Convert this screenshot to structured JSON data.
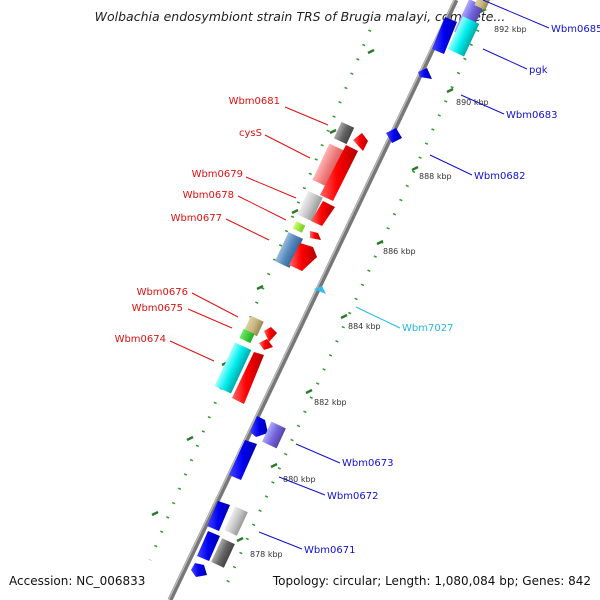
{
  "title": "Wolbachia endosymbiont strain TRS of Brugia malayi, complete...",
  "accession": "Accession: NC_006833",
  "topology": "Topology: circular; Length: 1,080,084 bp; Genes: 842",
  "colors": {
    "backbone": "#888888",
    "tick": "#2f9a2f",
    "reverse_label": "#dd1111",
    "forward_label": "#1111cc",
    "highlight_label": "#22bbdd",
    "scale_label": "#333333"
  },
  "scale_labels": [
    "878 kbp",
    "880 kbp",
    "882 kbp",
    "884 kbp",
    "886 kbp",
    "888 kbp",
    "890 kbp",
    "892 kbp"
  ],
  "genes": [
    {
      "name": "Wbm0685",
      "strand": "forward",
      "label_color": "forward"
    },
    {
      "name": "pgk",
      "strand": "forward",
      "label_color": "forward"
    },
    {
      "name": "Wbm0683",
      "strand": "forward",
      "label_color": "forward"
    },
    {
      "name": "Wbm0682",
      "strand": "forward",
      "label_color": "forward"
    },
    {
      "name": "Wbm7027",
      "strand": "forward",
      "label_color": "highlight"
    },
    {
      "name": "Wbm0673",
      "strand": "forward",
      "label_color": "forward"
    },
    {
      "name": "Wbm0672",
      "strand": "forward",
      "label_color": "forward"
    },
    {
      "name": "Wbm0671",
      "strand": "forward",
      "label_color": "forward"
    },
    {
      "name": "Wbm0681",
      "strand": "reverse",
      "label_color": "reverse"
    },
    {
      "name": "cysS",
      "strand": "reverse",
      "label_color": "reverse"
    },
    {
      "name": "Wbm0679",
      "strand": "reverse",
      "label_color": "reverse"
    },
    {
      "name": "Wbm0678",
      "strand": "reverse",
      "label_color": "reverse"
    },
    {
      "name": "Wbm0677",
      "strand": "reverse",
      "label_color": "reverse"
    },
    {
      "name": "Wbm0676",
      "strand": "reverse",
      "label_color": "reverse"
    },
    {
      "name": "Wbm0675",
      "strand": "reverse",
      "label_color": "reverse"
    },
    {
      "name": "Wbm0674",
      "strand": "reverse",
      "label_color": "reverse"
    }
  ]
}
